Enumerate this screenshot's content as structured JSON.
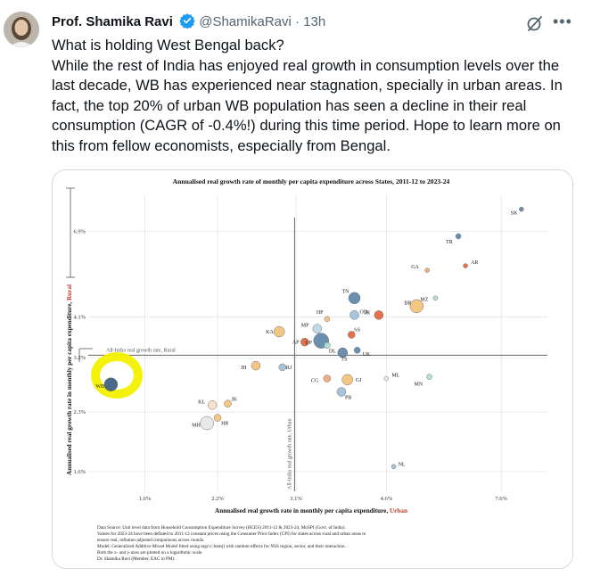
{
  "tweet": {
    "author_name": "Prof. Shamika Ravi",
    "handle": "@ShamikaRavi",
    "separator": "·",
    "time": "13h",
    "text_lines": [
      "What is holding West Bengal back?",
      "While the rest of India has enjoyed real growth in consumption levels over the last decade, WB has experienced near stagnation, specially in urban areas. In fact, the top 20% of urban WB population has seen a decline in their real consumption (CAGR of -0.4%!) during this time period. Hope to learn more on this from fellow economists, especially from Bengal."
    ],
    "more_icon": "•••"
  },
  "colors": {
    "text": "#0f1419",
    "muted": "#536471",
    "verified": "#1d9bf0",
    "highlight": "#f5f000",
    "rural_red": "#c0392b"
  },
  "chart_data": {
    "type": "scatter",
    "title": "Annualised real growth rate of monthly per capita expenditure across States, 2011-12 to 2023-24",
    "xlabel_prefix": "Annualised real growth rate in monthly per capita expenditure, ",
    "xlabel_suffix": "Urban",
    "ylabel_prefix": "Annualised real growth rate in monthly per capita expenditure, ",
    "ylabel_suffix": "Rural",
    "x_scale": "log",
    "y_scale": "log",
    "xlim": [
      1.25,
      9.3
    ],
    "ylim": [
      1.42,
      8.6
    ],
    "x_ticks": [
      1.6,
      2.2,
      3.1,
      4.6,
      7.6
    ],
    "x_tick_labels": [
      "1.6%",
      "2.2%",
      "3.1%",
      "4.6%",
      "7.6%"
    ],
    "y_ticks": [
      1.6,
      2.3,
      3.2,
      4.1,
      6.9
    ],
    "y_tick_labels": [
      "1.6%",
      "2.3%",
      "3.2%",
      "4.1%",
      "6.9%"
    ],
    "ref_lines": {
      "rural": 3.25,
      "urban": 3.08,
      "rural_label": "All-India real growth rate, Rural",
      "urban_label": "All-India real growth rate, Urban"
    },
    "points": [
      {
        "label": "SK",
        "x": 8.3,
        "y": 7.9,
        "color": "#5f86a8"
      },
      {
        "label": "TR",
        "x": 6.3,
        "y": 6.7,
        "color": "#5f86a8"
      },
      {
        "label": "AR",
        "x": 6.5,
        "y": 5.6,
        "color": "#e0673f"
      },
      {
        "label": "GA",
        "x": 5.5,
        "y": 5.45,
        "color": "#f0a878"
      },
      {
        "label": "MZ",
        "x": 5.7,
        "y": 4.6,
        "color": "#aee0cf"
      },
      {
        "label": "BR",
        "x": 5.25,
        "y": 4.38,
        "color": "#f3c27a"
      },
      {
        "label": "TN",
        "x": 4.0,
        "y": 4.6,
        "color": "#5f86a8"
      },
      {
        "label": "JR",
        "x": 4.45,
        "y": 4.15,
        "color": "#e0673f"
      },
      {
        "label": "OD",
        "x": 4.0,
        "y": 4.15,
        "color": "#9fbfd8"
      },
      {
        "label": "HP",
        "x": 3.55,
        "y": 4.05,
        "color": "#f3c27a"
      },
      {
        "label": "MP",
        "x": 3.4,
        "y": 3.82,
        "color": "#bcd6e8"
      },
      {
        "label": "AS",
        "x": 3.95,
        "y": 3.68,
        "color": "#e0673f"
      },
      {
        "label": "KA",
        "x": 2.88,
        "y": 3.75,
        "color": "#f3c27a"
      },
      {
        "label": "AP",
        "x": 3.22,
        "y": 3.52,
        "color": "#e0673f"
      },
      {
        "label": "UP",
        "x": 3.46,
        "y": 3.55,
        "color": "#5f86a8"
      },
      {
        "label": "RJ",
        "x": 2.92,
        "y": 3.02,
        "color": "#9fbfd8"
      },
      {
        "label": "DL",
        "x": 3.55,
        "y": 3.45,
        "color": "#aee0cf"
      },
      {
        "label": "TS",
        "x": 3.8,
        "y": 3.3,
        "color": "#5f86a8"
      },
      {
        "label": "UK",
        "x": 4.05,
        "y": 3.35,
        "color": "#5f86a8"
      },
      {
        "label": "JH",
        "x": 2.6,
        "y": 3.05,
        "color": "#f3c27a"
      },
      {
        "label": "CG",
        "x": 3.55,
        "y": 2.82,
        "color": "#f0a878"
      },
      {
        "label": "GJ",
        "x": 3.88,
        "y": 2.8,
        "color": "#f3c27a"
      },
      {
        "label": "PB",
        "x": 3.78,
        "y": 2.6,
        "color": "#9fbfd8"
      },
      {
        "label": "ML",
        "x": 4.6,
        "y": 2.82,
        "color": "#e8e8e8"
      },
      {
        "label": "MN",
        "x": 5.55,
        "y": 2.85,
        "color": "#aee0cf"
      },
      {
        "label": "WB",
        "x": 1.38,
        "y": 2.72,
        "color": "#3b5c80"
      },
      {
        "label": "KL",
        "x": 2.15,
        "y": 2.4,
        "color": "#f6e2c6"
      },
      {
        "label": "JK",
        "x": 2.3,
        "y": 2.42,
        "color": "#f3c27a"
      },
      {
        "label": "MH",
        "x": 2.1,
        "y": 2.15,
        "color": "#e8e8e8"
      },
      {
        "label": "HR",
        "x": 2.2,
        "y": 2.22,
        "color": "#f3c27a"
      },
      {
        "label": "NL",
        "x": 4.75,
        "y": 1.65,
        "color": "#9fbfd8"
      }
    ],
    "notes": [
      "Data Source: Unit level data from Household Consumption Expenditure Survey (HCES) 2011-12 & 2023-24, MoSPI (Govt. of India).",
      "Values for 2023-24 have been deflated to 2011-12 constant prices using the Consumer Price Index (CPI) for states across rural and urban areas to",
      "ensure real, inflation-adjusted comparisons across rounds.",
      "Model: Generalized Additive Mixed Model fitted using mgcv::bam() with random effects for NSS region, sector, and their interaction.",
      "Both the x- and y-axes are plotted on a logarithmic scale.",
      "Dr. Shamika Ravi (Member, EAC to PM)."
    ]
  }
}
